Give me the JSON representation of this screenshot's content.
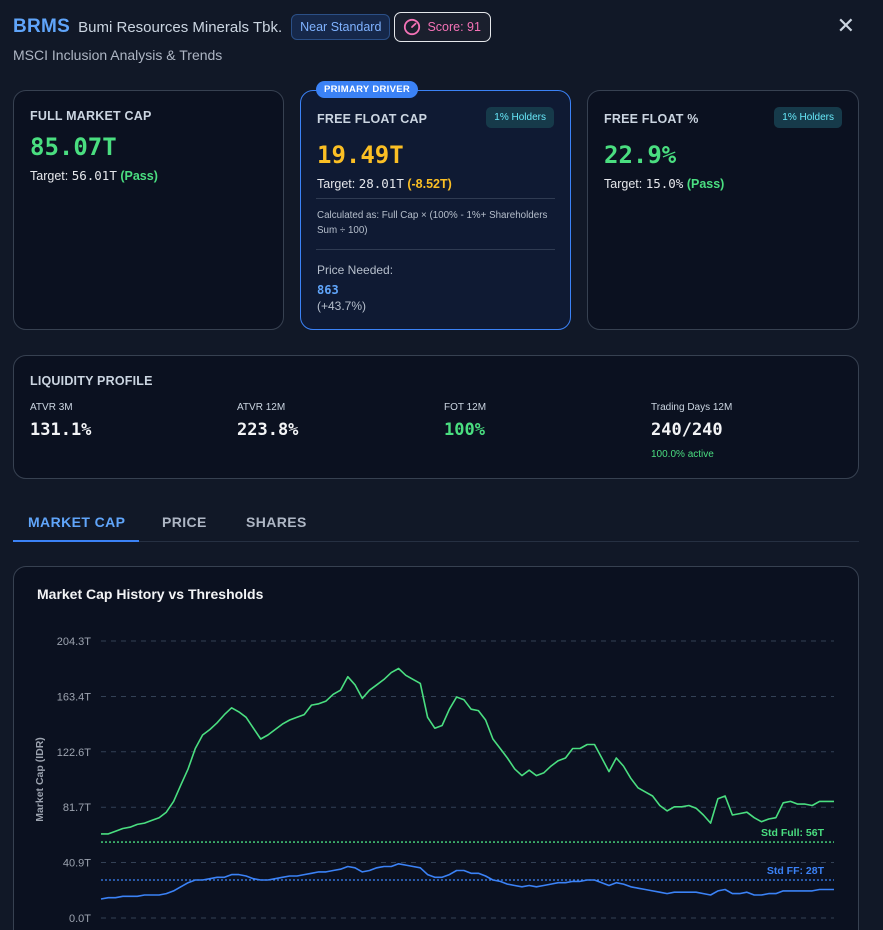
{
  "header": {
    "ticker": "BRMS",
    "company": "Bumi Resources Minerals Tbk.",
    "status_badge": "Near Standard",
    "score_label": "Score: 91",
    "subtitle": "MSCI Inclusion Analysis & Trends"
  },
  "cards": {
    "full_market_cap": {
      "label": "FULL MARKET CAP",
      "value": "85.07T",
      "target_prefix": "Target:",
      "target_value": "56.01T",
      "status": "(Pass)"
    },
    "free_float_cap": {
      "tag": "PRIMARY DRIVER",
      "label": "FREE FLOAT CAP",
      "badge": "1% Holders",
      "value": "19.49T",
      "target_prefix": "Target:",
      "target_value": "28.01T",
      "gap": "(-8.52T)",
      "calc_note": "Calculated as: Full Cap × (100% - 1%+ Shareholders Sum ÷ 100)",
      "price_needed_label": "Price Needed:",
      "price_needed_value": "863",
      "price_needed_change": "(+43.7%)"
    },
    "free_float_pct": {
      "label": "FREE FLOAT %",
      "badge": "1% Holders",
      "value": "22.9%",
      "target_prefix": "Target:",
      "target_value": "15.0%",
      "status": "(Pass)"
    }
  },
  "liquidity": {
    "title": "LIQUIDITY PROFILE",
    "items": [
      {
        "label": "ATVR 3M",
        "value": "131.1%"
      },
      {
        "label": "ATVR 12M",
        "value": "223.8%"
      },
      {
        "label": "FOT 12M",
        "value": "100%"
      },
      {
        "label": "Trading Days 12M",
        "value": "240/240",
        "sub": "100.0% active"
      }
    ]
  },
  "tabs": [
    {
      "label": "MARKET CAP",
      "active": true
    },
    {
      "label": "PRICE",
      "active": false
    },
    {
      "label": "SHARES",
      "active": false
    }
  ],
  "chart_data": {
    "type": "line",
    "title": "Market Cap History vs Thresholds",
    "ylabel": "Market Cap (IDR)",
    "xlabel": "",
    "ylim": [
      0,
      204.3
    ],
    "yticks": [
      "204.3T",
      "163.4T",
      "122.6T",
      "81.7T",
      "40.9T",
      "0.0T"
    ],
    "ytick_values": [
      204.3,
      163.4,
      122.6,
      81.7,
      40.9,
      0
    ],
    "grid": true,
    "thresholds": [
      {
        "label": "Std Full: 56T",
        "value": 56,
        "color": "#4ade80"
      },
      {
        "label": "Std FF: 28T",
        "value": 28,
        "color": "#3b82f6"
      }
    ],
    "series": [
      {
        "color": "#4ade80",
        "values": [
          62,
          62,
          64,
          66,
          67,
          69,
          70,
          72,
          74,
          78,
          86,
          98,
          110,
          125,
          135,
          139,
          144,
          150,
          155,
          152,
          148,
          140,
          132,
          135,
          139,
          143,
          146,
          148,
          150,
          157,
          158,
          160,
          165,
          168,
          178,
          172,
          162,
          168,
          172,
          176,
          181,
          184,
          179,
          176,
          173,
          148,
          140,
          142,
          154,
          163,
          161,
          154,
          153,
          146,
          132,
          125,
          118,
          110,
          105,
          109,
          105,
          107,
          112,
          116,
          118,
          125,
          125,
          128,
          128,
          118,
          108,
          118,
          112,
          103,
          96,
          93,
          90,
          83,
          79,
          82,
          82,
          83,
          81,
          76,
          70,
          88,
          90,
          76,
          77,
          78,
          74,
          71,
          73,
          74,
          85,
          86,
          84,
          84,
          83,
          86,
          86,
          86
        ]
      },
      {
        "color": "#3b82f6",
        "values": [
          14,
          15,
          15,
          16,
          16,
          16,
          17,
          17,
          17,
          18,
          20,
          23,
          26,
          28,
          28,
          29,
          30,
          30,
          32,
          32,
          31,
          29,
          28,
          28,
          29,
          30,
          31,
          31,
          32,
          33,
          34,
          34,
          35,
          36,
          38,
          37,
          34,
          35,
          37,
          38,
          38,
          40,
          39,
          38,
          37,
          32,
          30,
          30,
          32,
          35,
          35,
          33,
          33,
          31,
          28,
          27,
          25,
          24,
          23,
          24,
          23,
          24,
          25,
          26,
          26,
          27,
          27,
          28,
          28,
          26,
          24,
          26,
          25,
          23,
          22,
          21,
          20,
          19,
          18,
          19,
          19,
          19,
          19,
          18,
          17,
          20,
          21,
          18,
          18,
          19,
          17,
          17,
          18,
          18,
          20,
          20,
          20,
          20,
          20,
          21,
          21,
          21
        ]
      }
    ]
  }
}
